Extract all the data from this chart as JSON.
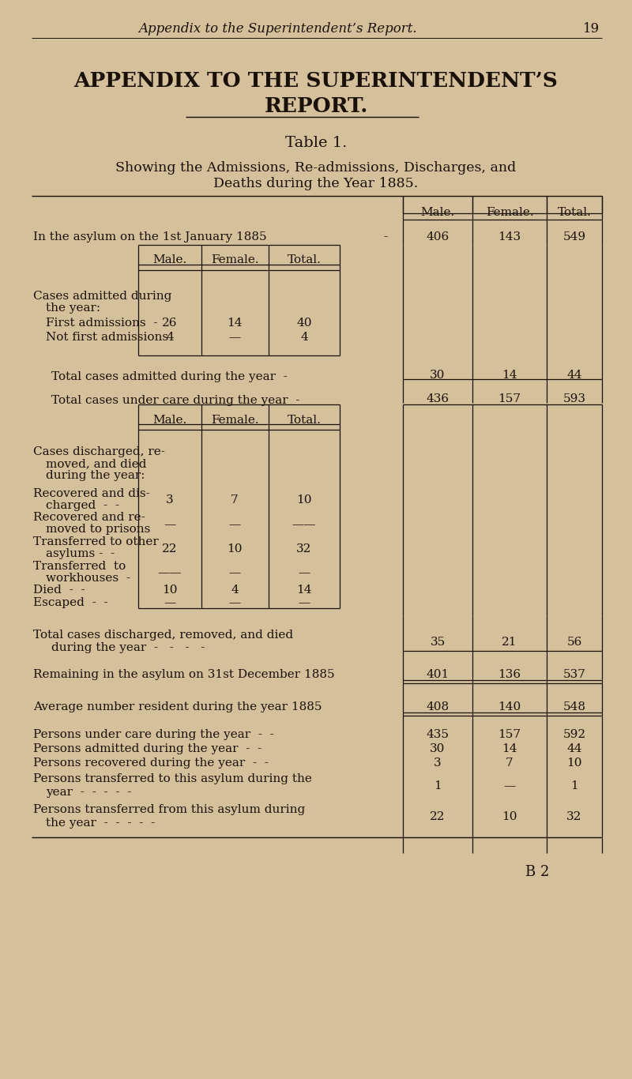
{
  "bg_color": "#d4c09a",
  "text_color": "#1a1008",
  "page_header": "Appendix to the Superintendent’s Report.",
  "page_number": "19",
  "main_title_line1": "APPENDIX TO THE SUPERINTENDENT’S",
  "main_title_line2": "REPORT.",
  "table_title": "Table 1.",
  "subtitle_line1": "Showing the Admissions, Re-admissions, Discharges, and",
  "subtitle_line2": "Deaths during the Year 1885.",
  "row1_label": "In the asylum on the 1st January 1885",
  "row1_dash": "-",
  "row1_vals": [
    "406",
    "143",
    "549"
  ],
  "first_admissions_vals": [
    "26",
    "14",
    "40"
  ],
  "not_first_vals": [
    "4",
    "—",
    "4"
  ],
  "total_admitted_vals": [
    "30",
    "14",
    "44"
  ],
  "total_care_vals": [
    "436",
    "157",
    "593"
  ],
  "recovered_dis_vals": [
    "3",
    "7",
    "10"
  ],
  "trans_other_vals": [
    "22",
    "10",
    "32"
  ],
  "died_vals": [
    "10",
    "4",
    "14"
  ],
  "total_dis_vals": [
    "35",
    "21",
    "56"
  ],
  "remaining_vals": [
    "401",
    "136",
    "537"
  ],
  "average_vals": [
    "408",
    "140",
    "548"
  ],
  "persons_care_vals": [
    "435",
    "157",
    "592"
  ],
  "persons_admitted_vals": [
    "30",
    "14",
    "44"
  ],
  "persons_recovered_vals": [
    "3",
    "7",
    "10"
  ],
  "persons_trans_to_vals": [
    "1",
    "—",
    "1"
  ],
  "persons_trans_from_vals": [
    "22",
    "10",
    "32"
  ],
  "footer": "B 2"
}
